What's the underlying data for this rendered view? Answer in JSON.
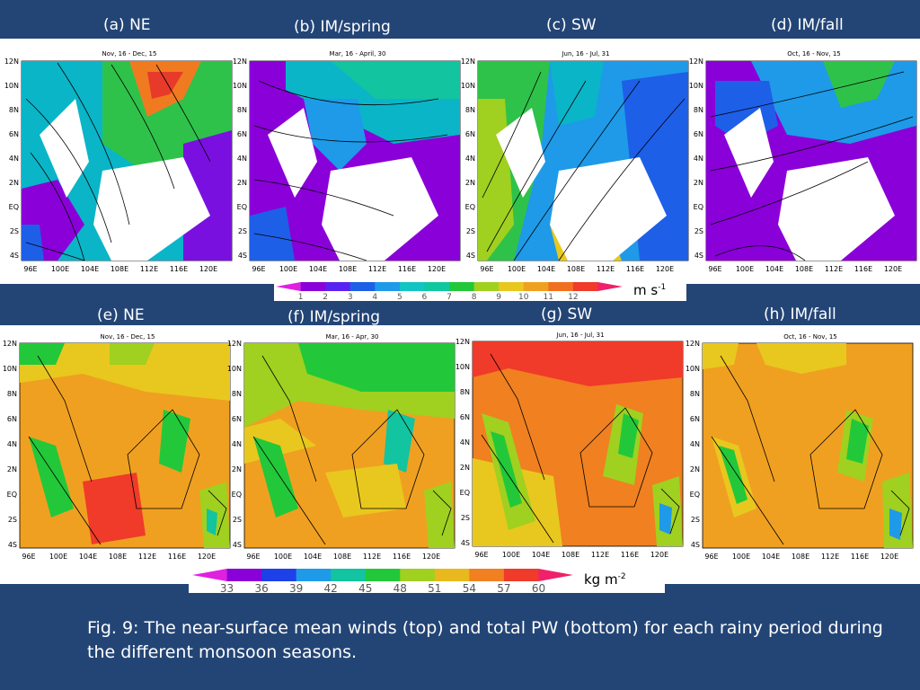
{
  "top_labels": [
    "(a) NE",
    "(b)  IM/spring",
    "(c)  SW",
    "(d) IM/fall"
  ],
  "bottom_labels": [
    "(e) NE",
    "(f)  IM/spring",
    "(g)  SW",
    "(h) IM/fall"
  ],
  "top_titles": [
    "Nov, 16 - Dec, 15",
    "Mar, 16 - April, 30",
    "Jun, 16 - Jul, 31",
    "Oct, 16 - Nov, 15"
  ],
  "bottom_titles": [
    "Nov, 16 - Dec, 15",
    "Mar, 16 - Apr, 30",
    "Jun, 16 - Jul, 31",
    "Oct, 16 - Nov, 15"
  ],
  "lat_ticks": [
    "12N",
    "10N",
    "8N",
    "6N",
    "4N",
    "2N",
    "EQ",
    "2S",
    "4S"
  ],
  "lon_ticks": [
    "96E",
    "100E",
    "104E",
    "108E",
    "112E",
    "116E",
    "120E"
  ],
  "wind_colorbar": {
    "ticks": [
      "1",
      "2",
      "3",
      "4",
      "5",
      "6",
      "7",
      "8",
      "9",
      "10",
      "11",
      "12"
    ],
    "unit_base": "m s",
    "unit_exp": "-1",
    "colors": [
      "#e020e0",
      "#8a00d8",
      "#5a22f0",
      "#1e5fe8",
      "#1e9ae8",
      "#12c4c4",
      "#10c8a0",
      "#22c83a",
      "#a0d020",
      "#e8c81e",
      "#f0a020",
      "#f07020",
      "#f03a2a",
      "#f0206a"
    ]
  },
  "pw_colorbar": {
    "ticks": [
      "33",
      "36",
      "39",
      "42",
      "45",
      "48",
      "51",
      "54",
      "57",
      "60"
    ],
    "unit_base": "kg m",
    "unit_exp": "-2",
    "colors": [
      "#e020e0",
      "#8a00d8",
      "#1e40e8",
      "#1e9ae8",
      "#12c4a0",
      "#22c83a",
      "#a0d020",
      "#e8b81e",
      "#f08020",
      "#f03a2a",
      "#f0206a"
    ]
  },
  "caption": "Fig. 9: The near-surface mean winds (top) and total PW (bottom) for each rainy period during the different monsoon seasons."
}
